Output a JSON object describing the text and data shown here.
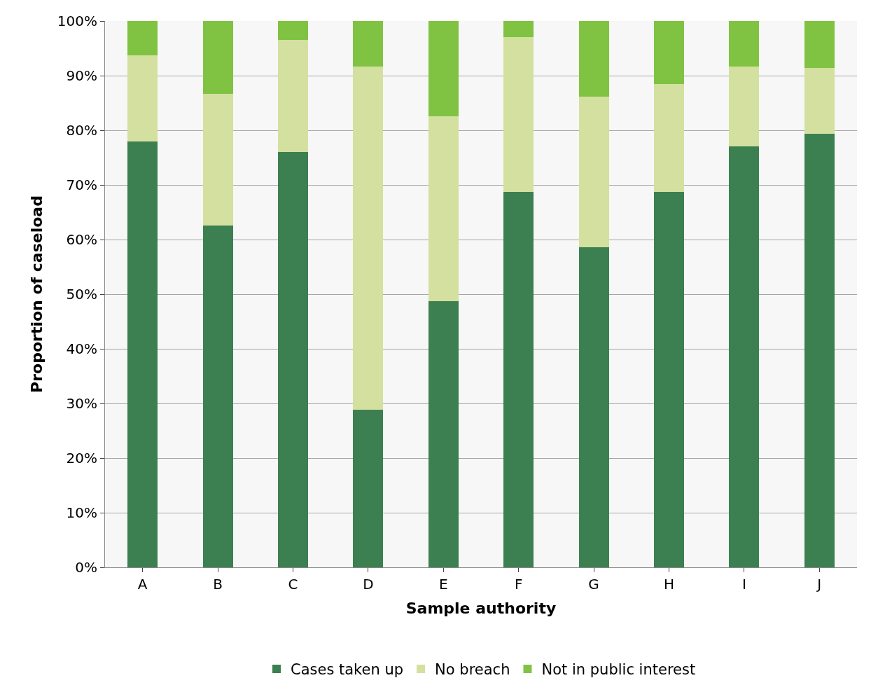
{
  "chart_data": {
    "type": "bar",
    "stacked": true,
    "xlabel": "Sample authority",
    "ylabel": "Proportion of caseload",
    "categories": [
      "A",
      "B",
      "C",
      "D",
      "E",
      "F",
      "G",
      "H",
      "I",
      "J"
    ],
    "series": [
      {
        "name": "Cases taken up",
        "color": "#3c8051",
        "values": [
          77.9,
          62.6,
          76.0,
          28.9,
          48.7,
          68.7,
          58.6,
          68.7,
          77.1,
          79.4
        ]
      },
      {
        "name": "No breach",
        "color": "#d3e09f",
        "values": [
          15.8,
          24.1,
          20.6,
          62.8,
          33.9,
          28.4,
          27.6,
          19.7,
          14.6,
          12.0
        ]
      },
      {
        "name": "Not in public interest",
        "color": "#80c342",
        "values": [
          6.3,
          13.3,
          3.4,
          8.3,
          17.4,
          2.9,
          13.8,
          11.6,
          8.3,
          8.6
        ]
      }
    ],
    "ylim": [
      0,
      100
    ],
    "yticks": [
      {
        "value": 0,
        "label": "0%"
      },
      {
        "value": 10,
        "label": "10%"
      },
      {
        "value": 20,
        "label": "20%"
      },
      {
        "value": 30,
        "label": "30%"
      },
      {
        "value": 40,
        "label": "40%"
      },
      {
        "value": 50,
        "label": "50%"
      },
      {
        "value": 60,
        "label": "60%"
      },
      {
        "value": 70,
        "label": "70%"
      },
      {
        "value": 80,
        "label": "80%"
      },
      {
        "value": 90,
        "label": "90%"
      },
      {
        "value": 100,
        "label": "100%"
      }
    ],
    "grid": "y",
    "legend": "bottom"
  }
}
